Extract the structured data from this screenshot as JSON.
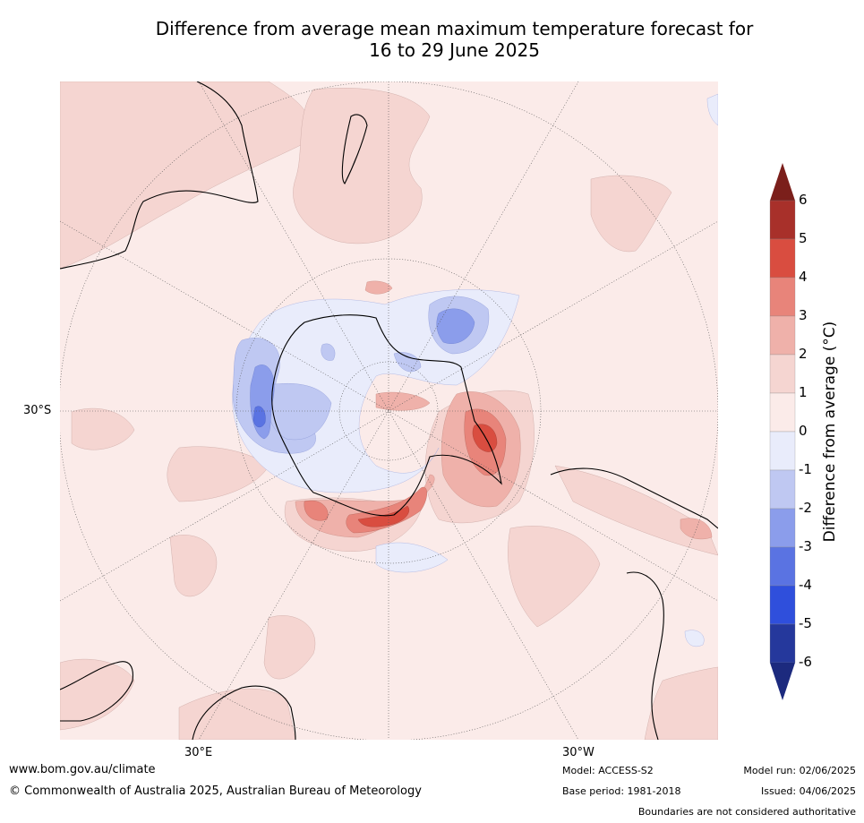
{
  "title_line1": "Difference from average mean maximum temperature forecast for",
  "title_line2": "16 to 29 June 2025",
  "map": {
    "lat_label": "30°S",
    "lon_labels": [
      "30°E",
      "30°W"
    ]
  },
  "colorbar": {
    "title": "Difference from average (°C)",
    "ticks": [
      "6",
      "5",
      "4",
      "3",
      "2",
      "1",
      "0",
      "-1",
      "-2",
      "-3",
      "-4",
      "-5",
      "-6"
    ],
    "colors_high_to_low": [
      "#7b1f1b",
      "#a8302a",
      "#d94d40",
      "#e8847a",
      "#efb1aa",
      "#f5d5d1",
      "#fbebe9",
      "#e9ecfb",
      "#bfc8f2",
      "#8b9deb",
      "#5a73e2",
      "#2f4fdc",
      "#25389c",
      "#1c2a7e"
    ]
  },
  "footer": {
    "website": "www.bom.gov.au/climate",
    "copyright": "© Commonwealth of Australia 2025, Australian Bureau of Meteorology",
    "model": "Model: ACCESS-S2",
    "base_period": "Base period: 1981-2018",
    "model_run": "Model run: 02/06/2025",
    "issued": "Issued: 04/06/2025",
    "disclaimer": "Boundaries are not considered authoritative"
  }
}
